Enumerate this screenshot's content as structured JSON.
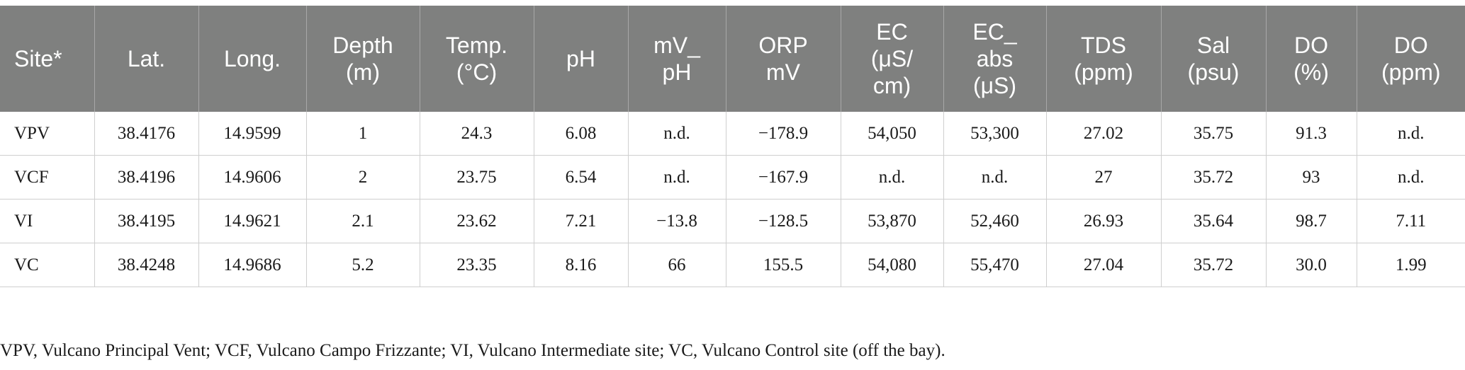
{
  "table": {
    "columns": [
      "Site*",
      "Lat.",
      "Long.",
      "Depth\n(m)",
      "Temp.\n(°C)",
      "pH",
      "mV_\npH",
      "ORP\nmV",
      "EC\n(μS/\ncm)",
      "EC_\nabs\n(μS)",
      "TDS\n(ppm)",
      "Sal\n(psu)",
      "DO\n(%)",
      "DO\n(ppm)"
    ],
    "rows": [
      [
        "VPV",
        "38.4176",
        "14.9599",
        "1",
        "24.3",
        "6.08",
        "n.d.",
        "−178.9",
        "54,050",
        "53,300",
        "27.02",
        "35.75",
        "91.3",
        "n.d."
      ],
      [
        "VCF",
        "38.4196",
        "14.9606",
        "2",
        "23.75",
        "6.54",
        "n.d.",
        "−167.9",
        "n.d.",
        "n.d.",
        "27",
        "35.72",
        "93",
        "n.d."
      ],
      [
        "VI",
        "38.4195",
        "14.9621",
        "2.1",
        "23.62",
        "7.21",
        "−13.8",
        "−128.5",
        "53,870",
        "52,460",
        "26.93",
        "35.64",
        "98.7",
        "7.11"
      ],
      [
        "VC",
        "38.4248",
        "14.9686",
        "5.2",
        "23.35",
        "8.16",
        "66",
        "155.5",
        "54,080",
        "55,470",
        "27.04",
        "35.72",
        "30.0",
        "1.99"
      ]
    ]
  },
  "footnote": "VPV, Vulcano Principal Vent; VCF, Vulcano Campo Frizzante; VI, Vulcano Intermediate site; VC, Vulcano Control site (off the bay).",
  "colors": {
    "header_bg": "#7f807f",
    "header_text": "#ffffff",
    "grid": "#cfcfcf"
  }
}
